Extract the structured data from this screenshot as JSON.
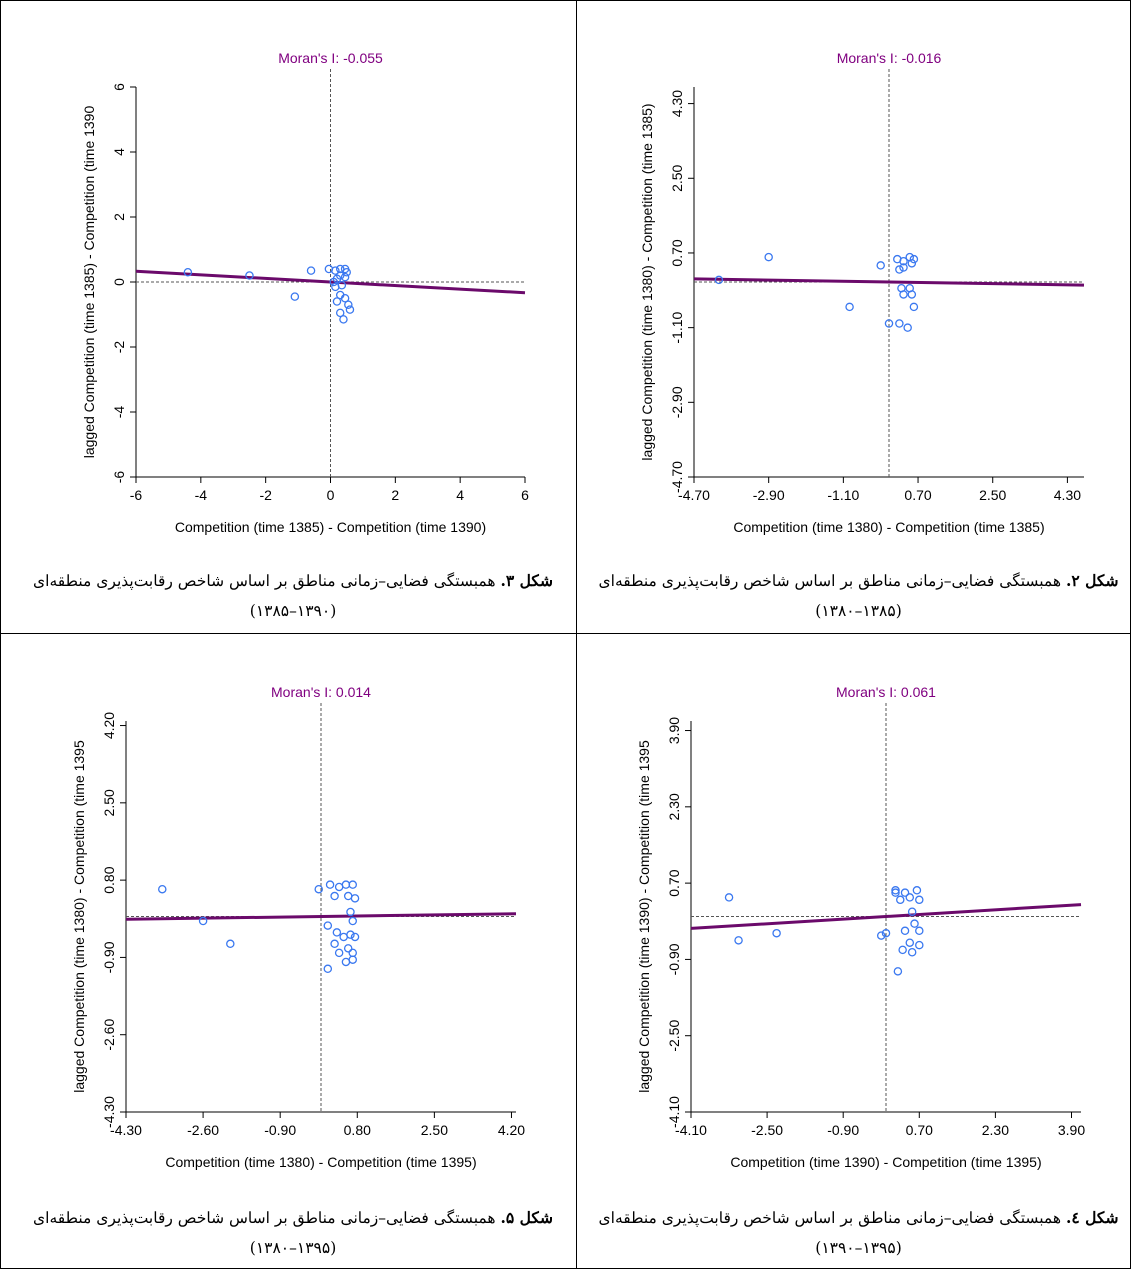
{
  "panels": [
    {
      "id": "fig3",
      "caption": {
        "label": "شکل ۳.",
        "text": "همبستگی فضایی–زمانی مناطق بر اساس شاخص رقابت‌پذیری منطقه‌ای (۱۳۹۰–۱۳۸۵)"
      }
    },
    {
      "id": "fig2",
      "caption": {
        "label": "شکل ۲.",
        "text": "همبستگی فضایی–زمانی مناطق بر اساس شاخص رقابت‌پذیری منطقه‌ای (۱۳۸۵–۱۳۸۰)"
      }
    },
    {
      "id": "fig5",
      "caption": {
        "label": "شکل ۵.",
        "text": "همبستگی فضایی–زمانی مناطق بر اساس شاخص رقابت‌پذیری منطقه‌ای (۱۳۹۵–۱۳۸۰)"
      }
    },
    {
      "id": "fig4",
      "caption": {
        "label": "شکل ٤.",
        "text": "همبستگی فضایی–زمانی مناطق بر اساس شاخص رقابت‌پذیری منطقه‌ای (۱۳۹۵–۱۳۹۰)"
      }
    }
  ],
  "colors": {
    "title": "#800080",
    "points": "#3a78f0",
    "fit": "#6b0a6b",
    "refline": "#555555"
  },
  "chart_data": [
    {
      "type": "scatter",
      "title": "Moran's I: -0.055",
      "xlabel": "Competition (time 1385) - Competition (time 1390)",
      "ylabel": "lagged Competition (time 1385) - Competition (time 1390",
      "xlim": [
        -6,
        6
      ],
      "ylim": [
        -6,
        6
      ],
      "xticks": [
        "-6",
        "-4",
        "-2",
        "0",
        "2",
        "4",
        "6"
      ],
      "yticks": [
        "-6",
        "-4",
        "-2",
        "0",
        "2",
        "4",
        "6"
      ],
      "xtick_values": [
        -6,
        -4,
        -2,
        0,
        2,
        4,
        6
      ],
      "ytick_values": [
        -6,
        -4,
        -2,
        0,
        2,
        4,
        6
      ],
      "ref_x": 0,
      "ref_y": 0,
      "fit": {
        "slope": -0.055,
        "intercept": 0
      },
      "points": [
        [
          -4.4,
          0.3
        ],
        [
          -2.5,
          0.2
        ],
        [
          -0.6,
          0.35
        ],
        [
          -1.1,
          -0.45
        ],
        [
          -0.05,
          0.4
        ],
        [
          0.15,
          0.35
        ],
        [
          0.3,
          0.4
        ],
        [
          0.45,
          0.4
        ],
        [
          0.5,
          0.3
        ],
        [
          0.3,
          0.2
        ],
        [
          0.45,
          0.15
        ],
        [
          0.2,
          0.1
        ],
        [
          0.1,
          0.0
        ],
        [
          0.15,
          -0.15
        ],
        [
          0.35,
          -0.1
        ],
        [
          0.3,
          -0.4
        ],
        [
          0.45,
          -0.5
        ],
        [
          0.2,
          -0.6
        ],
        [
          0.55,
          -0.7
        ],
        [
          0.6,
          -0.85
        ],
        [
          0.3,
          -0.95
        ],
        [
          0.4,
          -1.15
        ]
      ]
    },
    {
      "type": "scatter",
      "title": "Moran's I: -0.016",
      "xlabel": "Competition (time 1380) - Competition (time 1385)",
      "ylabel": "lagged Competition (time 1380) - Competition (time 1385)",
      "xlim": [
        -4.7,
        4.7
      ],
      "ylim": [
        -4.7,
        4.7
      ],
      "xticks": [
        "-4.70",
        "-2.90",
        "-1.10",
        "0.70",
        "2.50",
        "4.30"
      ],
      "yticks": [
        "-4.70",
        "-2.90",
        "-1.10",
        "0.70",
        "2.50",
        "4.30"
      ],
      "xtick_values": [
        -4.7,
        -2.9,
        -1.1,
        0.7,
        2.5,
        4.3
      ],
      "ytick_values": [
        -4.7,
        -2.9,
        -1.1,
        0.7,
        2.5,
        4.3
      ],
      "ref_x": 0,
      "ref_y": 0,
      "fit": {
        "slope": -0.016,
        "intercept": 0
      },
      "points": [
        [
          -4.1,
          0.05
        ],
        [
          -2.9,
          0.6
        ],
        [
          -0.95,
          -0.6
        ],
        [
          -0.2,
          0.4
        ],
        [
          0.2,
          0.55
        ],
        [
          0.35,
          0.5
        ],
        [
          0.5,
          0.6
        ],
        [
          0.6,
          0.55
        ],
        [
          0.55,
          0.45
        ],
        [
          0.35,
          0.35
        ],
        [
          0.25,
          0.3
        ],
        [
          0.3,
          -0.15
        ],
        [
          0.5,
          -0.15
        ],
        [
          0.55,
          -0.3
        ],
        [
          0.35,
          -0.3
        ],
        [
          0.6,
          -0.6
        ],
        [
          0.0,
          -1.0
        ],
        [
          0.25,
          -1.0
        ],
        [
          0.45,
          -1.1
        ]
      ]
    },
    {
      "type": "scatter",
      "title": "Moran's I: 0.014",
      "xlabel": "Competition (time 1380) - Competition (time 1395)",
      "ylabel": "lagged Competition (time 1380) - Competition (time 1395",
      "xlim": [
        -4.3,
        4.3
      ],
      "ylim": [
        -4.3,
        4.3
      ],
      "xticks": [
        "-4.30",
        "-2.60",
        "-0.90",
        "0.80",
        "2.50",
        "4.20"
      ],
      "yticks": [
        "-4.30",
        "-2.60",
        "-0.90",
        "0.80",
        "2.50",
        "4.20"
      ],
      "xtick_values": [
        -4.3,
        -2.6,
        -0.9,
        0.8,
        2.5,
        4.2
      ],
      "ytick_values": [
        -4.3,
        -2.6,
        -0.9,
        0.8,
        2.5,
        4.2
      ],
      "ref_x": 0,
      "ref_y": 0,
      "fit": {
        "slope": 0.014,
        "intercept": 0
      },
      "points": [
        [
          -3.5,
          0.6
        ],
        [
          -2.6,
          -0.1
        ],
        [
          -2.0,
          -0.6
        ],
        [
          -0.05,
          0.6
        ],
        [
          0.2,
          0.7
        ],
        [
          0.4,
          0.65
        ],
        [
          0.55,
          0.7
        ],
        [
          0.7,
          0.7
        ],
        [
          0.3,
          0.45
        ],
        [
          0.6,
          0.45
        ],
        [
          0.75,
          0.4
        ],
        [
          0.65,
          0.1
        ],
        [
          0.7,
          -0.1
        ],
        [
          0.15,
          -0.2
        ],
        [
          0.35,
          -0.35
        ],
        [
          0.5,
          -0.45
        ],
        [
          0.65,
          -0.4
        ],
        [
          0.75,
          -0.45
        ],
        [
          0.3,
          -0.6
        ],
        [
          0.6,
          -0.7
        ],
        [
          0.4,
          -0.8
        ],
        [
          0.7,
          -0.8
        ],
        [
          0.55,
          -1.0
        ],
        [
          0.15,
          -1.15
        ],
        [
          0.7,
          -0.95
        ]
      ]
    },
    {
      "type": "scatter",
      "title": "Moran's I: 0.061",
      "xlabel": "Competition (time 1390) - Competition (time 1395)",
      "ylabel": "lagged Competition (time 1390) - Competition (time 1395",
      "xlim": [
        -4.1,
        4.1
      ],
      "ylim": [
        -4.1,
        4.1
      ],
      "xticks": [
        "-4.10",
        "-2.50",
        "-0.90",
        "0.70",
        "2.30",
        "3.90"
      ],
      "yticks": [
        "-4.10",
        "-2.50",
        "-0.90",
        "0.70",
        "2.30",
        "3.90"
      ],
      "xtick_values": [
        -4.1,
        -2.5,
        -0.9,
        0.7,
        2.3,
        3.9
      ],
      "ytick_values": [
        -4.1,
        -2.5,
        -0.9,
        0.7,
        2.3,
        3.9
      ],
      "ref_x": 0,
      "ref_y": 0,
      "fit": {
        "slope": 0.061,
        "intercept": 0
      },
      "points": [
        [
          -3.3,
          0.4
        ],
        [
          -3.1,
          -0.5
        ],
        [
          -2.3,
          -0.35
        ],
        [
          0.2,
          0.55
        ],
        [
          0.4,
          0.5
        ],
        [
          0.65,
          0.55
        ],
        [
          0.3,
          0.35
        ],
        [
          0.5,
          0.4
        ],
        [
          0.7,
          0.35
        ],
        [
          0.2,
          0.5
        ],
        [
          0.55,
          0.1
        ],
        [
          0.6,
          -0.15
        ],
        [
          0.4,
          -0.3
        ],
        [
          0.7,
          -0.3
        ],
        [
          0.0,
          -0.35
        ],
        [
          -0.1,
          -0.4
        ],
        [
          0.5,
          -0.55
        ],
        [
          0.7,
          -0.6
        ],
        [
          0.35,
          -0.7
        ],
        [
          0.55,
          -0.75
        ],
        [
          0.25,
          -1.15
        ]
      ]
    }
  ]
}
